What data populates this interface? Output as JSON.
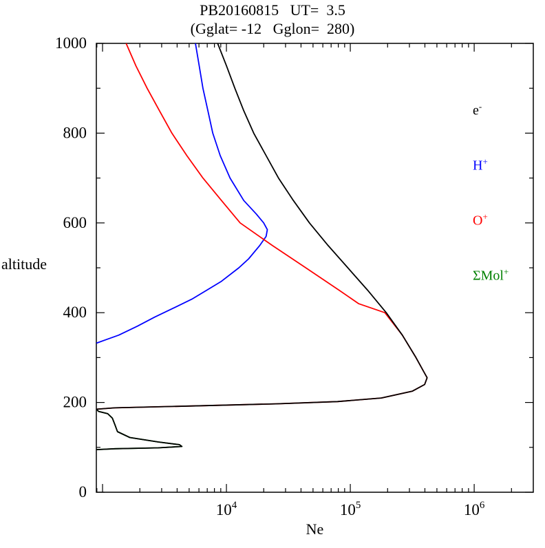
{
  "chart_data": {
    "type": "line",
    "title": "PB20160815   UT=  3.5",
    "subtitle": "(Gglat= -12   Gglon=  280)",
    "xlabel": "Ne",
    "ylabel": "altitude",
    "x_scale": "log",
    "xlim": [
      891,
      3000000
    ],
    "ylim": [
      0,
      1000
    ],
    "x_labeled_exponents": [
      4,
      5,
      6
    ],
    "x_major_exponents": [
      3,
      4,
      5,
      6
    ],
    "y_ticks": [
      0,
      200,
      400,
      600,
      800,
      1000
    ],
    "y_minor_ticks": [
      100,
      300,
      500,
      700,
      900
    ],
    "grid": false,
    "legend_position": "upper-right-inside",
    "legend": [
      {
        "base": "e",
        "sup": "-",
        "color": "#000000"
      },
      {
        "base": "H",
        "sup": "+",
        "color": "#0000ff"
      },
      {
        "base": "O",
        "sup": "+",
        "color": "#ff0000"
      },
      {
        "base": "ΣMol",
        "sup": "+",
        "color": "#008000"
      }
    ],
    "series": [
      {
        "name": "SigmaMol+",
        "color": "#008000",
        "points": [
          [
            891,
            185
          ],
          [
            930,
            180
          ],
          [
            1100,
            175
          ],
          [
            1200,
            165
          ],
          [
            1260,
            150
          ],
          [
            1320,
            135
          ],
          [
            1660,
            122
          ],
          [
            2820,
            112
          ],
          [
            4170,
            106
          ],
          [
            4370,
            102
          ],
          [
            2820,
            99
          ],
          [
            1260,
            97
          ],
          [
            891,
            95
          ]
        ]
      },
      {
        "name": "H+",
        "color": "#0000ff",
        "points": [
          [
            5620,
            1000
          ],
          [
            6030,
            950
          ],
          [
            6460,
            900
          ],
          [
            7080,
            850
          ],
          [
            7760,
            800
          ],
          [
            8910,
            750
          ],
          [
            10700,
            700
          ],
          [
            13800,
            650
          ],
          [
            17400,
            620
          ],
          [
            20000,
            600
          ],
          [
            21400,
            585
          ],
          [
            20900,
            570
          ],
          [
            18600,
            550
          ],
          [
            15100,
            520
          ],
          [
            12600,
            500
          ],
          [
            9120,
            470
          ],
          [
            6920,
            450
          ],
          [
            5250,
            430
          ],
          [
            3720,
            410
          ],
          [
            2630,
            390
          ],
          [
            1910,
            370
          ],
          [
            1350,
            350
          ],
          [
            1070,
            340
          ],
          [
            891,
            332
          ]
        ]
      },
      {
        "name": "O+",
        "color": "#ff0000",
        "points": [
          [
            1550,
            1000
          ],
          [
            1860,
            950
          ],
          [
            2290,
            900
          ],
          [
            2880,
            850
          ],
          [
            3630,
            800
          ],
          [
            4790,
            750
          ],
          [
            6460,
            700
          ],
          [
            9120,
            650
          ],
          [
            12900,
            600
          ],
          [
            23400,
            550
          ],
          [
            43700,
            500
          ],
          [
            81300,
            450
          ],
          [
            117000,
            420
          ],
          [
            190000,
            400
          ],
          [
            263000,
            350
          ],
          [
            339000,
            300
          ],
          [
            389000,
            270
          ],
          [
            417000,
            255
          ],
          [
            398000,
            240
          ],
          [
            316000,
            225
          ],
          [
            178000,
            210
          ],
          [
            79000,
            202
          ],
          [
            25000,
            197
          ],
          [
            5000,
            192
          ],
          [
            1260,
            188
          ],
          [
            891,
            185
          ]
        ]
      },
      {
        "name": "e-",
        "color": "#000000",
        "points": [
          [
            8500,
            1000
          ],
          [
            10000,
            950
          ],
          [
            11700,
            900
          ],
          [
            13800,
            850
          ],
          [
            16600,
            800
          ],
          [
            20900,
            750
          ],
          [
            26300,
            700
          ],
          [
            34700,
            650
          ],
          [
            46800,
            600
          ],
          [
            66000,
            550
          ],
          [
            95500,
            500
          ],
          [
            138000,
            450
          ],
          [
            195000,
            400
          ],
          [
            263000,
            350
          ],
          [
            339000,
            300
          ],
          [
            389000,
            270
          ],
          [
            417000,
            255
          ],
          [
            398000,
            240
          ],
          [
            316000,
            225
          ],
          [
            178000,
            210
          ],
          [
            79000,
            202
          ],
          [
            25000,
            197
          ],
          [
            5000,
            192
          ],
          [
            1260,
            188
          ],
          [
            891,
            185
          ],
          [
            930,
            180
          ],
          [
            1100,
            175
          ],
          [
            1200,
            165
          ],
          [
            1260,
            150
          ],
          [
            1320,
            135
          ],
          [
            1660,
            122
          ],
          [
            2820,
            112
          ],
          [
            4170,
            106
          ],
          [
            4370,
            102
          ],
          [
            2820,
            99
          ],
          [
            1260,
            97
          ],
          [
            891,
            95
          ]
        ]
      }
    ]
  }
}
